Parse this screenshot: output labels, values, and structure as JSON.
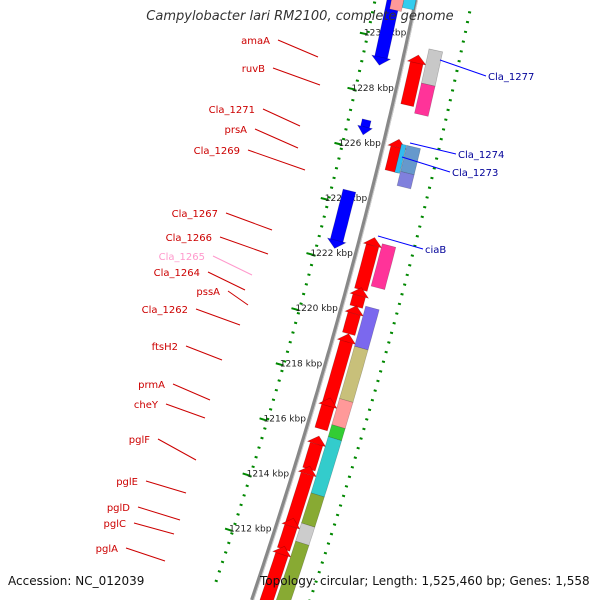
{
  "title": "Campylobacter lari RM2100, complete genome",
  "footer": {
    "accession": "Accession: NC_012039",
    "summary": "Topology: circular; Length: 1,525,460 bp; Genes: 1,558"
  },
  "colors": {
    "forward_cds": "#ff0000",
    "reverse_cds": "#0000ff",
    "forward_label": "#cc0000",
    "reverse_label": "#000099",
    "faint_label": "#ff99cc",
    "ruler": "#008800",
    "backbone": "#888888"
  },
  "ruler_ticks": [
    {
      "kbp": 1230,
      "label": "1230 kbp"
    },
    {
      "kbp": 1228,
      "label": "1228 kbp"
    },
    {
      "kbp": 1226,
      "label": "1226 kbp"
    },
    {
      "kbp": 1224,
      "label": "1224 kbp"
    },
    {
      "kbp": 1222,
      "label": "1222 kbp"
    },
    {
      "kbp": 1220,
      "label": "1220 kbp"
    },
    {
      "kbp": 1218,
      "label": "1218 kbp"
    },
    {
      "kbp": 1216,
      "label": "1216 kbp"
    },
    {
      "kbp": 1214,
      "label": "1214 kbp"
    },
    {
      "kbp": 1212,
      "label": "1212 kbp"
    }
  ],
  "forward_labels": [
    {
      "text": "amaA",
      "style": "normal"
    },
    {
      "text": "ruvB",
      "style": "normal"
    },
    {
      "text": "Cla_1271",
      "style": "normal"
    },
    {
      "text": "prsA",
      "style": "normal"
    },
    {
      "text": "Cla_1269",
      "style": "normal"
    },
    {
      "text": "Cla_1267",
      "style": "normal"
    },
    {
      "text": "Cla_1266",
      "style": "normal"
    },
    {
      "text": "Cla_1265",
      "style": "faint"
    },
    {
      "text": "Cla_1264",
      "style": "normal"
    },
    {
      "text": "pssA",
      "style": "normal"
    },
    {
      "text": "Cla_1262",
      "style": "normal"
    },
    {
      "text": "ftsH2",
      "style": "normal"
    },
    {
      "text": "prmA",
      "style": "normal"
    },
    {
      "text": "cheY",
      "style": "normal"
    },
    {
      "text": "pglF",
      "style": "normal"
    },
    {
      "text": "pglE",
      "style": "normal"
    },
    {
      "text": "pglD",
      "style": "normal"
    },
    {
      "text": "pglC",
      "style": "normal"
    },
    {
      "text": "pglA",
      "style": "normal"
    }
  ],
  "reverse_labels": [
    {
      "text": "Cla_1277"
    },
    {
      "text": "Cla_1274"
    },
    {
      "text": "Cla_1273"
    },
    {
      "text": "ciaB"
    }
  ]
}
